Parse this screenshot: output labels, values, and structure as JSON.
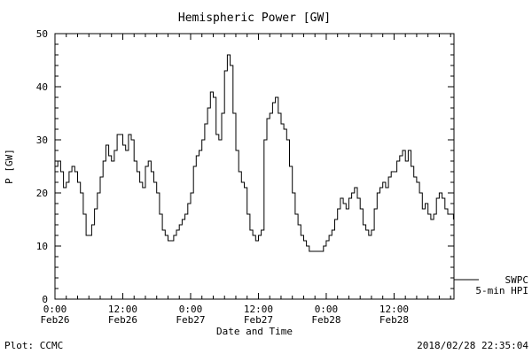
{
  "title": "Hemispheric Power [GW]",
  "footer": {
    "left": "Plot: CCMC",
    "right": "2018/02/28 22:35:04"
  },
  "legend": {
    "source": "SWPC",
    "series": "5-min HPI"
  },
  "colors": {
    "line": "#000000",
    "axis": "#000000",
    "background": "#ffffff"
  },
  "chart_data": {
    "type": "line",
    "title": "Hemispheric Power [GW]",
    "xlabel": "Date and Time",
    "ylabel": "P [GW]",
    "ylim": [
      0,
      50
    ],
    "xlim_hours": [
      0,
      70.6
    ],
    "grid": false,
    "legend_position": "right-outside",
    "y_ticks": [
      0,
      10,
      20,
      30,
      40,
      50
    ],
    "y_minor_step": 2,
    "x_minor_step_hours": 2,
    "x_ticks": [
      {
        "hours": 0,
        "time": "0:00",
        "date": "Feb26"
      },
      {
        "hours": 12,
        "time": "12:00",
        "date": "Feb26"
      },
      {
        "hours": 24,
        "time": "0:00",
        "date": "Feb27"
      },
      {
        "hours": 36,
        "time": "12:00",
        "date": "Feb27"
      },
      {
        "hours": 48,
        "time": "0:00",
        "date": "Feb28"
      },
      {
        "hours": 60,
        "time": "12:00",
        "date": "Feb28"
      }
    ],
    "series": [
      {
        "name": "5-min HPI",
        "source": "SWPC",
        "units": "GW",
        "points": [
          [
            0,
            25
          ],
          [
            0.5,
            26
          ],
          [
            1,
            24
          ],
          [
            1.5,
            21
          ],
          [
            2,
            22
          ],
          [
            2.5,
            24
          ],
          [
            3,
            25
          ],
          [
            3.5,
            24
          ],
          [
            4,
            22
          ],
          [
            4.5,
            20
          ],
          [
            5,
            16
          ],
          [
            5.5,
            12
          ],
          [
            6,
            12
          ],
          [
            6.5,
            14
          ],
          [
            7,
            17
          ],
          [
            7.5,
            20
          ],
          [
            8,
            23
          ],
          [
            8.5,
            26
          ],
          [
            9,
            29
          ],
          [
            9.5,
            27
          ],
          [
            10,
            26
          ],
          [
            10.5,
            28
          ],
          [
            11,
            31
          ],
          [
            11.5,
            31
          ],
          [
            12,
            29
          ],
          [
            12.5,
            28
          ],
          [
            13,
            31
          ],
          [
            13.5,
            30
          ],
          [
            14,
            26
          ],
          [
            14.5,
            24
          ],
          [
            15,
            22
          ],
          [
            15.5,
            21
          ],
          [
            16,
            25
          ],
          [
            16.5,
            26
          ],
          [
            17,
            24
          ],
          [
            17.5,
            22
          ],
          [
            18,
            20
          ],
          [
            18.5,
            16
          ],
          [
            19,
            13
          ],
          [
            19.5,
            12
          ],
          [
            20,
            11
          ],
          [
            20.5,
            11
          ],
          [
            21,
            12
          ],
          [
            21.5,
            13
          ],
          [
            22,
            14
          ],
          [
            22.5,
            15
          ],
          [
            23,
            16
          ],
          [
            23.5,
            18
          ],
          [
            24,
            20
          ],
          [
            24.5,
            25
          ],
          [
            25,
            27
          ],
          [
            25.5,
            28
          ],
          [
            26,
            30
          ],
          [
            26.5,
            33
          ],
          [
            27,
            36
          ],
          [
            27.5,
            39
          ],
          [
            28,
            38
          ],
          [
            28.5,
            31
          ],
          [
            29,
            30
          ],
          [
            29.5,
            35
          ],
          [
            30,
            43
          ],
          [
            30.5,
            46
          ],
          [
            31,
            44
          ],
          [
            31.5,
            35
          ],
          [
            32,
            28
          ],
          [
            32.5,
            24
          ],
          [
            33,
            22
          ],
          [
            33.5,
            21
          ],
          [
            34,
            16
          ],
          [
            34.5,
            13
          ],
          [
            35,
            12
          ],
          [
            35.5,
            11
          ],
          [
            36,
            12
          ],
          [
            36.5,
            13
          ],
          [
            37,
            30
          ],
          [
            37.5,
            34
          ],
          [
            38,
            35
          ],
          [
            38.5,
            37
          ],
          [
            39,
            38
          ],
          [
            39.5,
            35
          ],
          [
            40,
            33
          ],
          [
            40.5,
            32
          ],
          [
            41,
            30
          ],
          [
            41.5,
            25
          ],
          [
            42,
            20
          ],
          [
            42.5,
            16
          ],
          [
            43,
            14
          ],
          [
            43.5,
            12
          ],
          [
            44,
            11
          ],
          [
            44.5,
            10
          ],
          [
            45,
            9
          ],
          [
            45.5,
            9
          ],
          [
            46,
            9
          ],
          [
            46.5,
            9
          ],
          [
            47,
            9
          ],
          [
            47.5,
            10
          ],
          [
            48,
            11
          ],
          [
            48.5,
            12
          ],
          [
            49,
            13
          ],
          [
            49.5,
            15
          ],
          [
            50,
            17
          ],
          [
            50.5,
            19
          ],
          [
            51,
            18
          ],
          [
            51.5,
            17
          ],
          [
            52,
            19
          ],
          [
            52.5,
            20
          ],
          [
            53,
            21
          ],
          [
            53.5,
            19
          ],
          [
            54,
            17
          ],
          [
            54.5,
            14
          ],
          [
            55,
            13
          ],
          [
            55.5,
            12
          ],
          [
            56,
            13
          ],
          [
            56.5,
            17
          ],
          [
            57,
            20
          ],
          [
            57.5,
            21
          ],
          [
            58,
            22
          ],
          [
            58.5,
            21
          ],
          [
            59,
            23
          ],
          [
            59.5,
            24
          ],
          [
            60,
            24
          ],
          [
            60.5,
            26
          ],
          [
            61,
            27
          ],
          [
            61.5,
            28
          ],
          [
            62,
            26
          ],
          [
            62.5,
            28
          ],
          [
            63,
            25
          ],
          [
            63.5,
            23
          ],
          [
            64,
            22
          ],
          [
            64.5,
            20
          ],
          [
            65,
            17
          ],
          [
            65.5,
            18
          ],
          [
            66,
            16
          ],
          [
            66.5,
            15
          ],
          [
            67,
            16
          ],
          [
            67.5,
            19
          ],
          [
            68,
            20
          ],
          [
            68.5,
            19
          ],
          [
            69,
            17
          ],
          [
            69.5,
            16
          ],
          [
            70,
            16
          ],
          [
            70.5,
            15
          ]
        ]
      }
    ]
  }
}
